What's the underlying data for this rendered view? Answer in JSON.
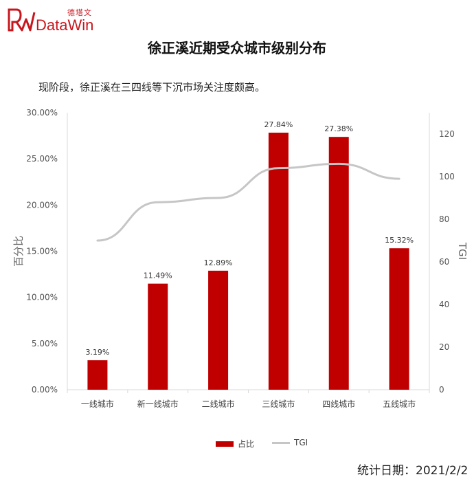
{
  "logo": {
    "cn_text": "德塔文",
    "en_text": "DataWin",
    "brand_color": "#c8161d"
  },
  "header": {
    "title": "徐正溪近期受众城市级别分布",
    "subtitle": "现阶段，徐正溪在三四线等下沉市场关注度颇高。"
  },
  "footer": {
    "text": "统计日期：2021/2/2"
  },
  "chart_data": {
    "type": "bar",
    "categories": [
      "一线城市",
      "新一线城市",
      "二线城市",
      "三线城市",
      "四线城市",
      "五线城市"
    ],
    "series": [
      {
        "name": "占比",
        "type": "bar",
        "axis": "left",
        "values": [
          3.19,
          11.49,
          12.89,
          27.84,
          27.38,
          15.32
        ],
        "labels": [
          "3.19%",
          "11.49%",
          "12.89%",
          "27.84%",
          "27.38%",
          "15.32%"
        ],
        "color": "#c00000"
      },
      {
        "name": "TGI",
        "type": "line",
        "axis": "right",
        "values": [
          70,
          88,
          90,
          104,
          106,
          99
        ],
        "color": "#c6c6c6"
      }
    ],
    "ylabel": "百分比",
    "y2label": "TGI",
    "ylim": [
      0,
      30
    ],
    "y2lim": [
      0,
      130
    ],
    "yticks": [
      "0.00%",
      "5.00%",
      "10.00%",
      "15.00%",
      "20.00%",
      "25.00%",
      "30.00%"
    ],
    "ytick_values": [
      0,
      5,
      10,
      15,
      20,
      25,
      30
    ],
    "y2ticks": [
      "0",
      "20",
      "40",
      "60",
      "80",
      "100",
      "120"
    ],
    "y2tick_values": [
      0,
      20,
      40,
      60,
      80,
      100,
      120
    ],
    "legend_position": "bottom",
    "grid": false
  }
}
